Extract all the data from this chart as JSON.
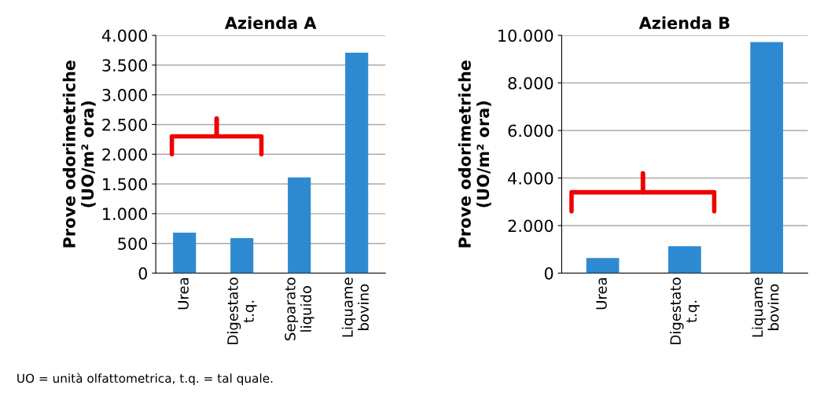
{
  "chart_data": [
    {
      "type": "bar",
      "title": "Azienda A",
      "ylabel": "Prove odorimetriche\n(UO/m² ora)",
      "categories": [
        "Urea",
        "Digestato\nt.q.",
        "Separato\nliquido",
        "Liquame\nbovino"
      ],
      "values": [
        680,
        590,
        1610,
        3710
      ],
      "color": "#2e8ad0",
      "ylim": [
        0,
        4000
      ],
      "yticks": [
        0,
        500,
        {
          "value": 1000,
          "label": "1.000"
        },
        {
          "value": 1500,
          "label": "1.500"
        },
        {
          "value": 2000,
          "label": "2.000"
        },
        {
          "value": 2500,
          "label": "2.500"
        },
        {
          "value": 3000,
          "label": "3.000"
        },
        {
          "value": 3500,
          "label": "3.500"
        },
        {
          "value": 4000,
          "label": "4.000"
        }
      ],
      "grid": "y",
      "annotations": [
        "UO = unità olfattometrica, t.q. = tal quale."
      ]
    },
    {
      "type": "bar",
      "title": "Azienda B",
      "ylabel": "Prove odorimetriche\n(UO/m² ora)",
      "categories": [
        "Urea",
        "Digestato\nt.q.",
        "Liquame\nbovino"
      ],
      "values": [
        640,
        1130,
        9720
      ],
      "color": "#2e8ad0",
      "ylim": [
        0,
        10000
      ],
      "yticks": [
        0,
        {
          "value": 2000,
          "label": "2.000"
        },
        {
          "value": 4000,
          "label": "4.000"
        },
        {
          "value": 6000,
          "label": "6.000"
        },
        {
          "value": 8000,
          "label": "8.000"
        },
        {
          "value": 10000,
          "label": "10.000"
        }
      ],
      "grid": "y"
    }
  ]
}
